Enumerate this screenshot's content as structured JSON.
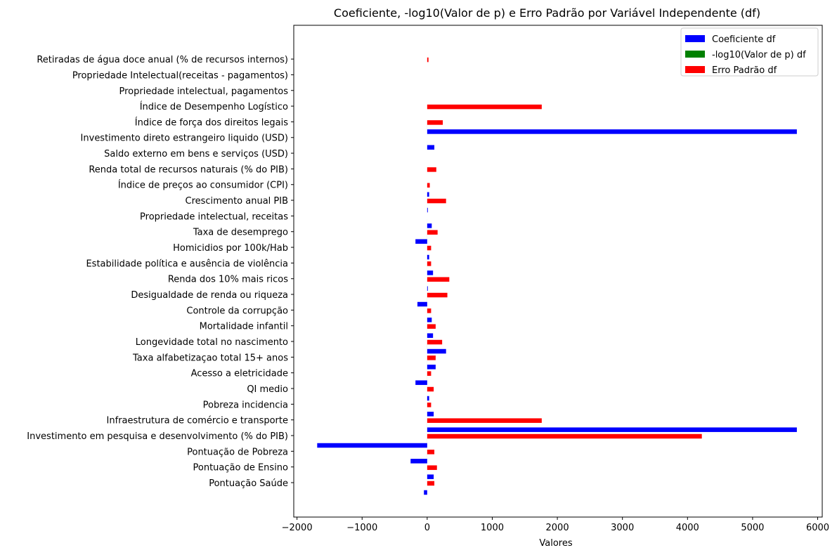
{
  "chart_data": {
    "type": "bar",
    "orientation": "horizontal",
    "title": "Coeficiente, -log10(Valor de p) e Erro Padrão por Variável Independente (df)",
    "xlabel": "Valores",
    "ylabel": "",
    "xlim": [
      -2050,
      6070
    ],
    "x_ticks": [
      -2000,
      -1000,
      0,
      1000,
      2000,
      3000,
      4000,
      5000,
      6000
    ],
    "x_tick_labels": [
      "−2000",
      "−1000",
      "0",
      "1000",
      "2000",
      "3000",
      "4000",
      "5000",
      "6000"
    ],
    "grid": false,
    "legend_position": "top-right",
    "categories": [
      "Pontuação Saúde",
      "Pontuação de Ensino",
      "Pontuação de Pobreza",
      "Investimento em pesquisa e desenvolvimento (% do PIB)",
      "Infraestrutura de comércio e transporte",
      "Pobreza incidencia",
      "QI medio",
      "Acesso a eletricidade",
      "Taxa alfabetizaçao total 15+ anos",
      "Longevidade total no nascimento",
      "Mortalidade infantil",
      "Controle da corrupção",
      "Desigualdade de renda ou riqueza",
      "Renda dos 10% mais ricos",
      "Estabilidade política e ausência de violência",
      "Homicidios por 100k/Hab",
      "Taxa de desemprego",
      "Propriedade intelectual, receitas",
      "Crescimento anual PIB",
      "Índice de preços ao consumidor (CPI)",
      "Renda total de recursos naturais (% do PIB)",
      "Saldo externo em bens e serviços (USD)",
      "Investimento direto estrangeiro liquido (USD)",
      "Índice de força dos direitos legais",
      "Índice de Desempenho Logístico",
      "Propriedade intelectual, pagamentos",
      "Propriedade Intelectual(receitas - pagamentos)",
      "Retiradas de água doce anual (% de recursos internos)"
    ],
    "series": [
      {
        "name": "Coeficiente df",
        "color": "#0000ff",
        "values": [
          -50,
          100,
          -255,
          -1690,
          5680,
          100,
          30,
          -180,
          130,
          290,
          90,
          70,
          -150,
          10,
          90,
          30,
          -180,
          70,
          10,
          30,
          0,
          0,
          110,
          5680,
          0,
          0,
          0,
          0
        ]
      },
      {
        "name": "-log10(Valor de p) df",
        "color": "#008000",
        "values": [
          0.1,
          0.3,
          0.5,
          0.6,
          0.4,
          0.2,
          0.1,
          0.5,
          0.4,
          0.6,
          0.3,
          0.2,
          0.4,
          0.1,
          0.3,
          0.1,
          0.5,
          0.2,
          0.1,
          0.1,
          0.0,
          0.0,
          0.2,
          0.4,
          0.0,
          0.0,
          0.0,
          0.0
        ]
      },
      {
        "name": "Erro Padrão df",
        "color": "#ff0000",
        "values": [
          110,
          150,
          110,
          4220,
          1760,
          60,
          100,
          60,
          130,
          230,
          130,
          60,
          310,
          340,
          60,
          60,
          160,
          0,
          290,
          40,
          140,
          0,
          0,
          240,
          1760,
          0,
          0,
          20
        ]
      }
    ]
  }
}
